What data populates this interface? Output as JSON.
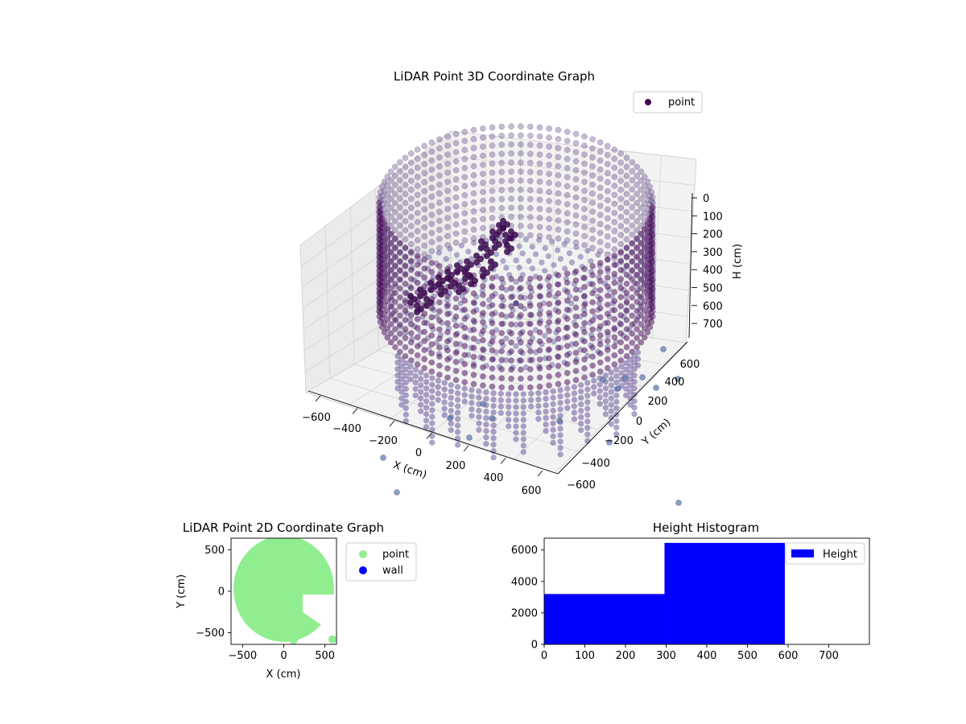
{
  "chart_data": [
    {
      "type": "scatter",
      "subtype": "3d",
      "title": "LiDAR Point 3D Coordinate Graph",
      "xlabel": "X (cm)",
      "ylabel": "Y (cm)",
      "zlabel": "H (cm)",
      "xticks": [
        "−600",
        "−400",
        "−200",
        "0",
        "200",
        "400",
        "600"
      ],
      "yticks": [
        "−600",
        "−400",
        "−200",
        "0",
        "200",
        "400",
        "600"
      ],
      "zticks": [
        "0",
        "100",
        "200",
        "300",
        "400",
        "500",
        "600",
        "700"
      ],
      "xlim": [
        -650,
        650
      ],
      "ylim": [
        -650,
        650
      ],
      "zlim": [
        0,
        750
      ],
      "zinverted": true,
      "grid": true,
      "legend": {
        "position": "top-right",
        "entries": [
          {
            "label": "point",
            "color": "#440154"
          }
        ]
      },
      "series": [
        {
          "name": "point",
          "color": "#440154",
          "description_shape": "cylindrical wall of radius ~600 cm, floor slice at ~300 cm, foreground clutter",
          "wall_radius": 600,
          "wall_height_range": [
            0,
            300
          ],
          "floor_height": 300,
          "outliers": [
            {
              "x": -520,
              "y": -380,
              "z": 600
            },
            {
              "x": -330,
              "y": -520,
              "z": 600
            },
            {
              "x": -110,
              "y": -620,
              "z": 600
            },
            {
              "x": 220,
              "y": -660,
              "z": 600
            },
            {
              "x": 520,
              "y": -300,
              "z": 600
            },
            {
              "x": 600,
              "y": 250,
              "z": 600
            },
            {
              "x": 640,
              "y": 600,
              "z": 600
            },
            {
              "x": 300,
              "y": 560,
              "z": 600
            },
            {
              "x": 450,
              "y": 450,
              "z": 650
            },
            {
              "x": 800,
              "y": 600,
              "z": 750
            }
          ]
        }
      ]
    },
    {
      "type": "scatter",
      "title": "LiDAR Point 2D Coordinate Graph",
      "xlabel": "X (cm)",
      "ylabel": "Y (cm)",
      "xticks": [
        "−500",
        "0",
        "500"
      ],
      "yticks": [
        "−500",
        "0",
        "500"
      ],
      "xlim": [
        -640,
        640
      ],
      "ylim": [
        -640,
        640
      ],
      "legend": {
        "position": "outside-right",
        "entries": [
          {
            "label": "point",
            "color": "#90ee90"
          },
          {
            "label": "wall",
            "color": "#0000ff"
          }
        ]
      },
      "series": [
        {
          "name": "point",
          "color": "#90ee90",
          "shape": "filled disc radius ~610 cm centered near (0,30) with a cut-out region at x 230..650, y -50..-500"
        },
        {
          "name": "wall",
          "color": "#0000ff",
          "values": []
        }
      ]
    },
    {
      "type": "bar",
      "subtype": "histogram",
      "title": "Height Histogram",
      "xlabel": "",
      "ylabel": "",
      "xticks": [
        "0",
        "100",
        "200",
        "300",
        "400",
        "500",
        "600",
        "700"
      ],
      "yticks": [
        "0",
        "2000",
        "4000",
        "6000"
      ],
      "xlim": [
        0,
        800
      ],
      "ylim": [
        0,
        6750
      ],
      "color": "#0000ff",
      "legend": {
        "position": "top-right",
        "entries": [
          {
            "label": "Height",
            "color": "#0000ff"
          }
        ]
      },
      "bins": [
        {
          "start": 0,
          "end": 296,
          "count": 3200
        },
        {
          "start": 296,
          "end": 592,
          "count": 6450
        },
        {
          "start": 592,
          "end": 800,
          "count": 0
        }
      ]
    }
  ]
}
